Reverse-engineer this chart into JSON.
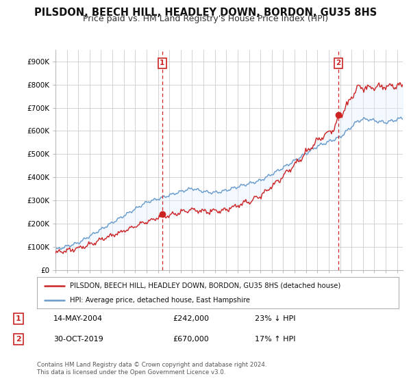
{
  "title": "PILSDON, BEECH HILL, HEADLEY DOWN, BORDON, GU35 8HS",
  "subtitle": "Price paid vs. HM Land Registry's House Price Index (HPI)",
  "ylabel_ticks": [
    "£0",
    "£100K",
    "£200K",
    "£300K",
    "£400K",
    "£500K",
    "£600K",
    "£700K",
    "£800K",
    "£900K"
  ],
  "ytick_values": [
    0,
    100000,
    200000,
    300000,
    400000,
    500000,
    600000,
    700000,
    800000,
    900000
  ],
  "ylim": [
    0,
    950000
  ],
  "xlim_start": 1995.0,
  "xlim_end": 2025.5,
  "hpi_color": "#6699cc",
  "hpi_fill_color": "#ddeeff",
  "price_color": "#cc2222",
  "marker1_date": 2004.37,
  "marker1_label": "1",
  "marker1_price": 242000,
  "marker1_text": "14-MAY-2004",
  "marker1_pct": "23% ↓ HPI",
  "marker2_date": 2019.83,
  "marker2_label": "2",
  "marker2_price": 670000,
  "marker2_text": "30-OCT-2019",
  "marker2_pct": "17% ↑ HPI",
  "legend_line1": "PILSDON, BEECH HILL, HEADLEY DOWN, BORDON, GU35 8HS (detached house)",
  "legend_line2": "HPI: Average price, detached house, East Hampshire",
  "footer": "Contains HM Land Registry data © Crown copyright and database right 2024.\nThis data is licensed under the Open Government Licence v3.0.",
  "background_color": "#ffffff",
  "grid_color": "#cccccc",
  "title_fontsize": 10.5,
  "subtitle_fontsize": 9,
  "tick_fontsize": 7.5
}
